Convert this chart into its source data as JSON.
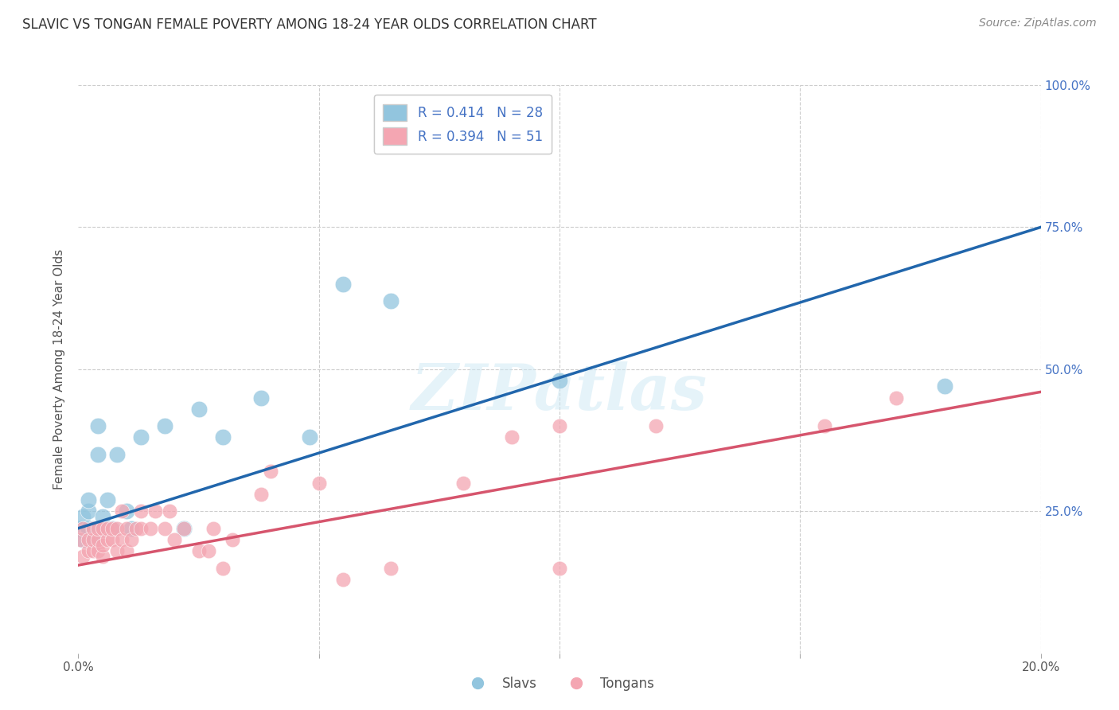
{
  "title": "SLAVIC VS TONGAN FEMALE POVERTY AMONG 18-24 YEAR OLDS CORRELATION CHART",
  "source": "Source: ZipAtlas.com",
  "ylabel": "Female Poverty Among 18-24 Year Olds",
  "xlim": [
    0,
    0.2
  ],
  "ylim": [
    0,
    1.0
  ],
  "slavs_R": "0.414",
  "slavs_N": "28",
  "tongans_R": "0.394",
  "tongans_N": "51",
  "slav_color": "#92C5DE",
  "tongan_color": "#F4A6B2",
  "slav_line_color": "#2166AC",
  "tongan_line_color": "#D6556D",
  "watermark": "ZIPatlas",
  "slavs_x": [
    0.0005,
    0.001,
    0.001,
    0.002,
    0.002,
    0.002,
    0.003,
    0.003,
    0.004,
    0.004,
    0.005,
    0.005,
    0.006,
    0.007,
    0.008,
    0.01,
    0.011,
    0.013,
    0.018,
    0.022,
    0.025,
    0.03,
    0.038,
    0.048,
    0.055,
    0.065,
    0.1,
    0.18
  ],
  "slavs_y": [
    0.22,
    0.2,
    0.24,
    0.22,
    0.25,
    0.27,
    0.22,
    0.2,
    0.4,
    0.35,
    0.22,
    0.24,
    0.27,
    0.22,
    0.35,
    0.25,
    0.22,
    0.38,
    0.4,
    0.22,
    0.43,
    0.38,
    0.45,
    0.38,
    0.65,
    0.62,
    0.48,
    0.47
  ],
  "tongans_x": [
    0.0005,
    0.001,
    0.001,
    0.002,
    0.002,
    0.003,
    0.003,
    0.003,
    0.004,
    0.004,
    0.004,
    0.005,
    0.005,
    0.005,
    0.006,
    0.006,
    0.007,
    0.007,
    0.008,
    0.008,
    0.009,
    0.009,
    0.01,
    0.01,
    0.011,
    0.012,
    0.013,
    0.013,
    0.015,
    0.016,
    0.018,
    0.019,
    0.02,
    0.022,
    0.025,
    0.027,
    0.028,
    0.03,
    0.032,
    0.038,
    0.04,
    0.05,
    0.055,
    0.065,
    0.08,
    0.09,
    0.1,
    0.1,
    0.12,
    0.155,
    0.17
  ],
  "tongans_y": [
    0.2,
    0.17,
    0.22,
    0.18,
    0.2,
    0.18,
    0.2,
    0.22,
    0.18,
    0.2,
    0.22,
    0.17,
    0.19,
    0.22,
    0.2,
    0.22,
    0.2,
    0.22,
    0.18,
    0.22,
    0.2,
    0.25,
    0.18,
    0.22,
    0.2,
    0.22,
    0.25,
    0.22,
    0.22,
    0.25,
    0.22,
    0.25,
    0.2,
    0.22,
    0.18,
    0.18,
    0.22,
    0.15,
    0.2,
    0.28,
    0.32,
    0.3,
    0.13,
    0.15,
    0.3,
    0.38,
    0.4,
    0.15,
    0.4,
    0.4,
    0.45
  ],
  "slav_line_x": [
    0.0,
    0.2
  ],
  "slav_line_y": [
    0.22,
    0.75
  ],
  "tongan_line_x": [
    0.0,
    0.2
  ],
  "tongan_line_y": [
    0.155,
    0.46
  ],
  "legend_slavs": "Slavs",
  "legend_tongans": "Tongans",
  "background_color": "#FFFFFF",
  "grid_color": "#CCCCCC",
  "right_ytick_color": "#4472C4",
  "left_ytick_color": "#4472C4",
  "title_color": "#333333",
  "source_color": "#888888",
  "ylabel_color": "#555555"
}
